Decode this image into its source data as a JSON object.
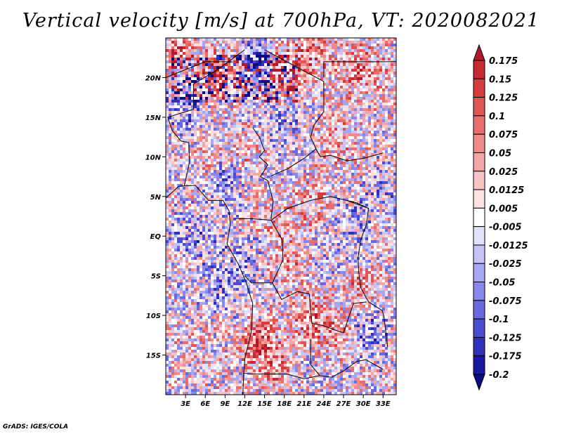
{
  "title": "Vertical velocity [m/s] at 700hPa, VT: 2020082021",
  "credit": "GrADS: IGES/COLA",
  "chart_data": {
    "type": "heatmap",
    "variable": "Vertical velocity",
    "units": "m/s",
    "level": "700hPa",
    "valid_time": "2020082021",
    "lon_range": [
      0,
      35
    ],
    "lat_range": [
      -20,
      25
    ],
    "x_ticks": [
      "3E",
      "6E",
      "9E",
      "12E",
      "15E",
      "18E",
      "21E",
      "24E",
      "27E",
      "30E",
      "33E"
    ],
    "x_tick_values": [
      3,
      6,
      9,
      12,
      15,
      18,
      21,
      24,
      27,
      30,
      33
    ],
    "y_ticks": [
      "20N",
      "15N",
      "10N",
      "5N",
      "EQ",
      "5S",
      "10S",
      "15S"
    ],
    "y_tick_values": [
      20,
      15,
      10,
      5,
      0,
      -5,
      -10,
      -15
    ],
    "colorbar": {
      "labels": [
        "0.175",
        "0.15",
        "0.125",
        "0.1",
        "0.075",
        "0.05",
        "0.025",
        "0.0125",
        "0.005",
        "-0.005",
        "-0.0125",
        "-0.025",
        "-0.05",
        "-0.075",
        "-0.1",
        "-0.125",
        "-0.175",
        "-0.2"
      ],
      "colors": [
        "#b2182b",
        "#c62a30",
        "#d63c3c",
        "#e05555",
        "#e86e6e",
        "#ee8a8a",
        "#f4a6a6",
        "#f9c4c4",
        "#fde2e2",
        "#ffffff",
        "#e2e2fd",
        "#c4c4f8",
        "#a6a6f2",
        "#8888ea",
        "#6a6adf",
        "#4c4cd2",
        "#3030bb",
        "#1a1aa0",
        "#0c0c80"
      ]
    }
  }
}
